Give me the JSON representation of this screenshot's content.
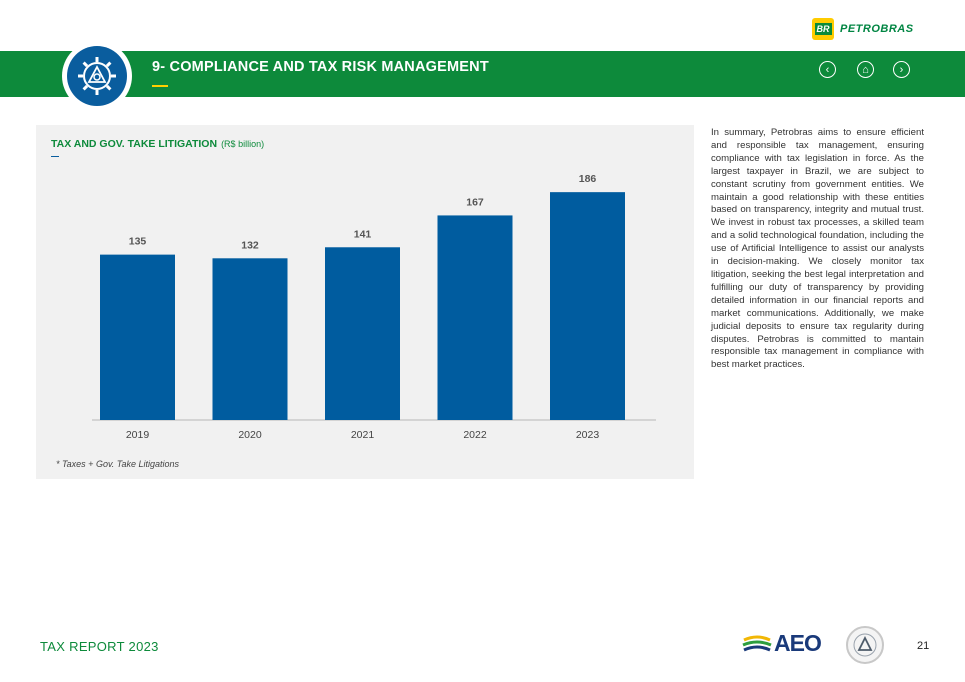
{
  "brand": {
    "badge": "BR",
    "name": "PETROBRAS"
  },
  "header": {
    "title": "9- COMPLIANCE AND TAX RISK MANAGEMENT"
  },
  "nav": {
    "prev": "‹",
    "home": "⌂",
    "next": "›"
  },
  "chart_data": {
    "type": "bar",
    "title": "TAX AND GOV. TAKE LITIGATION",
    "unit": "(R$ billion)",
    "categories": [
      "2019",
      "2020",
      "2021",
      "2022",
      "2023"
    ],
    "values": [
      135,
      132,
      141,
      167,
      186
    ],
    "ylim": [
      0,
      200
    ],
    "note": "* Taxes + Gov. Take Litigations",
    "colors": {
      "bar": "#005c9f",
      "title": "#0d8a3b"
    }
  },
  "summary": "In summary, Petrobras aims to ensure efficient and responsible tax management, ensuring compliance with tax legislation in force. As the largest taxpayer in Brazil, we are subject to constant scrutiny from government entities. We maintain a good relationship with these entities based on transparency, integrity and mutual trust. We invest in robust tax processes, a skilled team and a solid technological foundation, including the use of Artificial Intelligence to assist our analysts in decision-making. We closely monitor tax litigation, seeking the best legal interpretation and fulfilling our duty of transparency by providing detailed information in our financial reports and market communications. Additionally, we make judicial deposits to ensure tax regularity during disputes. Petrobras is committed to mantain responsible tax management in compliance with best market practices.",
  "footer": {
    "report": "TAX REPORT 2023",
    "aeo": "AEO",
    "page": "21"
  },
  "colors": {
    "green": "#0d8a3b",
    "blue": "#005c9f",
    "yellow": "#ffd000"
  }
}
